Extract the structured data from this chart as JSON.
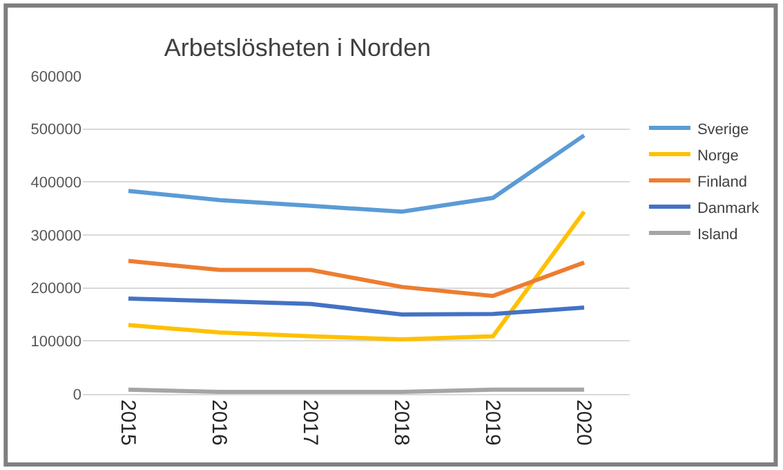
{
  "chart_data": {
    "type": "line",
    "title": "Arbetslösheten i Norden",
    "categories": [
      "2015",
      "2016",
      "2017",
      "2018",
      "2019",
      "2020"
    ],
    "series": [
      {
        "name": "Sverige",
        "color": "#5b9bd5",
        "values": [
          383000,
          366000,
          355000,
          344000,
          370000,
          488000
        ]
      },
      {
        "name": "Norge",
        "color": "#ffc000",
        "values": [
          130000,
          116000,
          109000,
          103000,
          109000,
          344000
        ]
      },
      {
        "name": "Finland",
        "color": "#ed7d31",
        "values": [
          251000,
          234000,
          234000,
          202000,
          185000,
          248000
        ]
      },
      {
        "name": "Danmark",
        "color": "#4472c4",
        "values": [
          180000,
          175000,
          170000,
          150000,
          151000,
          163000
        ]
      },
      {
        "name": "Island",
        "color": "#a5a5a5",
        "values": [
          8000,
          4000,
          4000,
          4000,
          8000,
          8000
        ]
      }
    ],
    "ylim": [
      0,
      600000
    ],
    "yticks": [
      0,
      100000,
      200000,
      300000,
      400000,
      500000,
      600000
    ],
    "grid": "y",
    "legend": "right",
    "marker": "none",
    "line_style": "solid"
  }
}
